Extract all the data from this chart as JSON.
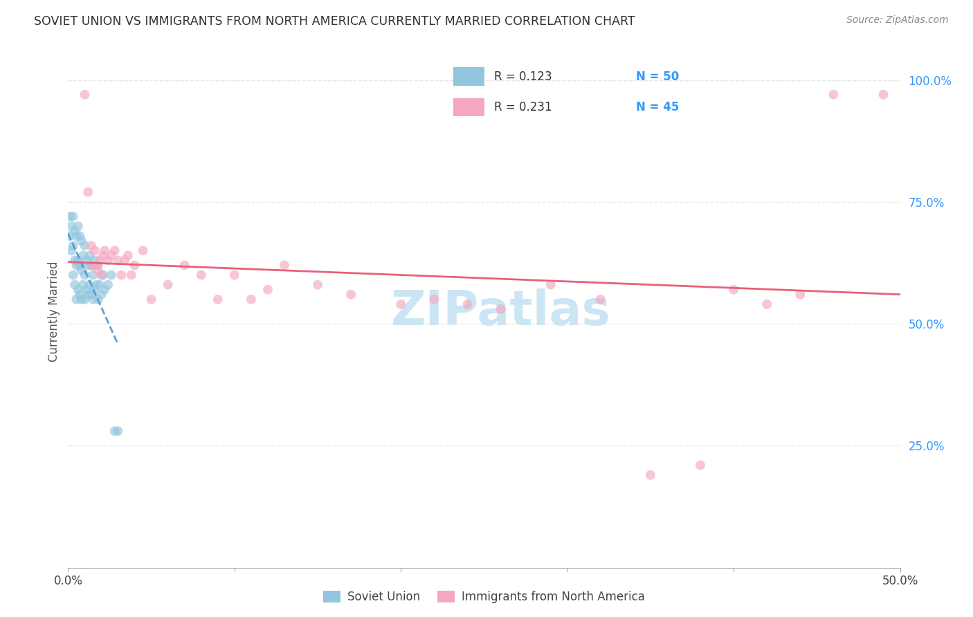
{
  "title": "SOVIET UNION VS IMMIGRANTS FROM NORTH AMERICA CURRENTLY MARRIED CORRELATION CHART",
  "source": "Source: ZipAtlas.com",
  "ylabel": "Currently Married",
  "xlim": [
    0.0,
    0.5
  ],
  "ylim": [
    0.0,
    1.05
  ],
  "legend_r1": "R = 0.123",
  "legend_n1": "N = 50",
  "legend_r2": "R = 0.231",
  "legend_n2": "N = 45",
  "legend_label1": "Soviet Union",
  "legend_label2": "Immigrants from North America",
  "color_blue": "#92c5de",
  "color_pink": "#f4a8bf",
  "color_blue_line": "#4d94d4",
  "color_pink_line": "#e8607a",
  "color_blue_text": "#3399ff",
  "watermark_color": "#cce5f5",
  "grid_color": "#e8e8e8",
  "background_color": "#ffffff",
  "soviet_x": [
    0.001,
    0.001,
    0.002,
    0.002,
    0.003,
    0.003,
    0.003,
    0.004,
    0.004,
    0.004,
    0.005,
    0.005,
    0.005,
    0.006,
    0.006,
    0.006,
    0.007,
    0.007,
    0.007,
    0.008,
    0.008,
    0.008,
    0.009,
    0.009,
    0.01,
    0.01,
    0.01,
    0.011,
    0.011,
    0.012,
    0.012,
    0.013,
    0.013,
    0.014,
    0.014,
    0.015,
    0.015,
    0.016,
    0.016,
    0.017,
    0.018,
    0.018,
    0.019,
    0.02,
    0.021,
    0.022,
    0.024,
    0.026,
    0.028,
    0.03
  ],
  "soviet_y": [
    0.68,
    0.72,
    0.65,
    0.7,
    0.6,
    0.66,
    0.72,
    0.58,
    0.63,
    0.69,
    0.55,
    0.62,
    0.68,
    0.57,
    0.63,
    0.7,
    0.56,
    0.62,
    0.68,
    0.55,
    0.61,
    0.67,
    0.58,
    0.64,
    0.55,
    0.6,
    0.66,
    0.57,
    0.63,
    0.56,
    0.62,
    0.58,
    0.64,
    0.56,
    0.62,
    0.55,
    0.6,
    0.57,
    0.63,
    0.58,
    0.55,
    0.62,
    0.58,
    0.56,
    0.6,
    0.57,
    0.58,
    0.6,
    0.28,
    0.28
  ],
  "na_x": [
    0.01,
    0.012,
    0.014,
    0.015,
    0.016,
    0.017,
    0.018,
    0.019,
    0.02,
    0.021,
    0.022,
    0.024,
    0.026,
    0.028,
    0.03,
    0.032,
    0.034,
    0.036,
    0.038,
    0.04,
    0.045,
    0.05,
    0.06,
    0.07,
    0.08,
    0.09,
    0.1,
    0.11,
    0.12,
    0.13,
    0.15,
    0.17,
    0.2,
    0.22,
    0.24,
    0.26,
    0.29,
    0.32,
    0.35,
    0.38,
    0.4,
    0.42,
    0.44,
    0.46,
    0.49
  ],
  "na_y": [
    0.97,
    0.77,
    0.66,
    0.62,
    0.65,
    0.62,
    0.61,
    0.63,
    0.6,
    0.64,
    0.65,
    0.63,
    0.64,
    0.65,
    0.63,
    0.6,
    0.63,
    0.64,
    0.6,
    0.62,
    0.65,
    0.55,
    0.58,
    0.62,
    0.6,
    0.55,
    0.6,
    0.55,
    0.57,
    0.62,
    0.58,
    0.56,
    0.54,
    0.55,
    0.54,
    0.53,
    0.58,
    0.55,
    0.19,
    0.21,
    0.57,
    0.54,
    0.56,
    0.97,
    0.97
  ]
}
